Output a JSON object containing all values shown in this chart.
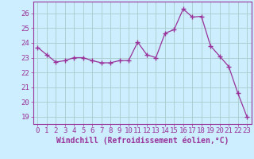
{
  "x": [
    0,
    1,
    2,
    3,
    4,
    5,
    6,
    7,
    8,
    9,
    10,
    11,
    12,
    13,
    14,
    15,
    16,
    17,
    18,
    19,
    20,
    21,
    22,
    23
  ],
  "y": [
    23.7,
    23.2,
    22.7,
    22.8,
    23.0,
    23.0,
    22.8,
    22.65,
    22.65,
    22.8,
    22.8,
    24.05,
    23.2,
    23.0,
    24.65,
    24.9,
    26.3,
    25.75,
    25.8,
    23.8,
    23.1,
    22.4,
    20.6,
    19.0
  ],
  "line_color": "#993399",
  "marker": "+",
  "marker_size": 4,
  "bg_color": "#cceeff",
  "grid_color": "#aacccc",
  "axis_color": "#993399",
  "tick_color": "#993399",
  "xlabel": "Windchill (Refroidissement éolien,°C)",
  "xlabel_color": "#993399",
  "ylim": [
    18.5,
    26.8
  ],
  "yticks": [
    19,
    20,
    21,
    22,
    23,
    24,
    25,
    26
  ],
  "xticks": [
    0,
    1,
    2,
    3,
    4,
    5,
    6,
    7,
    8,
    9,
    10,
    11,
    12,
    13,
    14,
    15,
    16,
    17,
    18,
    19,
    20,
    21,
    22,
    23
  ],
  "font_size": 6.5,
  "label_font_size": 7.0
}
